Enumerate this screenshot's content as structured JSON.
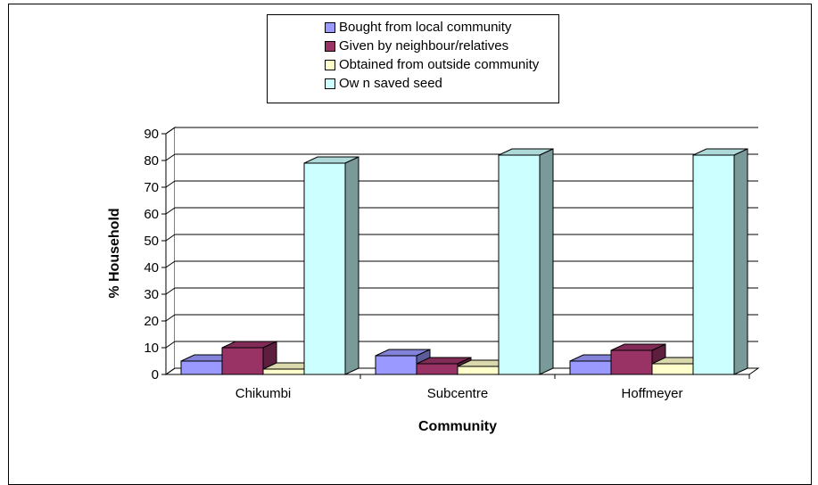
{
  "chart_data": {
    "type": "bar",
    "categories": [
      "Chikumbi",
      "Subcentre",
      "Hoffmeyer"
    ],
    "series": [
      {
        "name": "Bought from local community",
        "color": "#9999FF",
        "values": [
          5,
          7,
          5
        ]
      },
      {
        "name": "Given by neighbour/relatives",
        "color": "#993366",
        "values": [
          10,
          4,
          9
        ]
      },
      {
        "name": "Obtained from outside community",
        "color": "#FFFFCC",
        "values": [
          2,
          3,
          4
        ]
      },
      {
        "name": "Ow n saved seed",
        "color": "#CCFFFF",
        "values": [
          79,
          82,
          82
        ]
      }
    ],
    "xlabel": "Community",
    "ylabel": "% Household",
    "ylim": [
      0,
      90
    ],
    "yticks": [
      0,
      10,
      20,
      30,
      40,
      50,
      60,
      70,
      80,
      90
    ],
    "grid": true,
    "legend_position": "top-center",
    "three_d": true
  }
}
